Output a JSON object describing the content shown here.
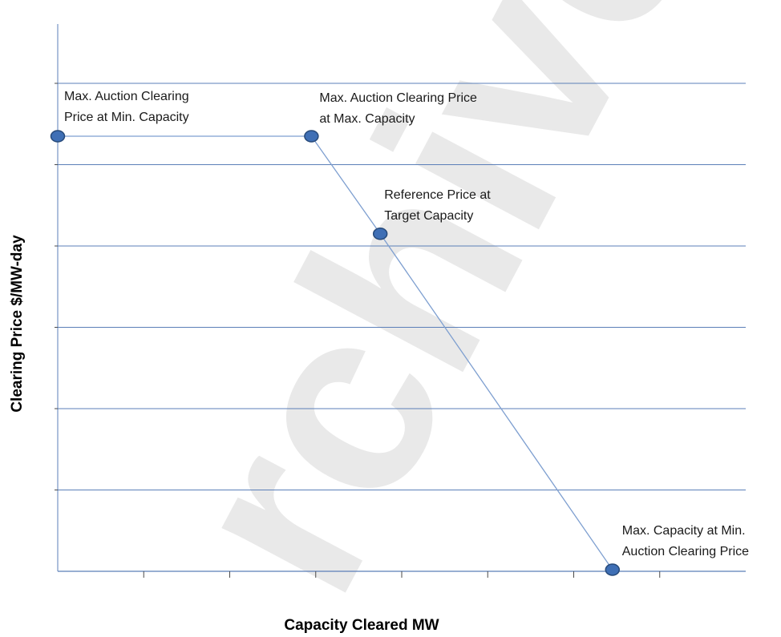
{
  "chart_data": {
    "type": "line",
    "title": "",
    "xlabel": "Capacity Cleared MW",
    "ylabel": "Clearing Price $/MW-day",
    "xlim": [
      0,
      8
    ],
    "ylim": [
      0,
      6
    ],
    "grid": true,
    "x_ticks_labeled": false,
    "y_ticks_labeled": false,
    "watermark": "rchive",
    "series": [
      {
        "values": [
          {
            "x": 0.0,
            "y": 5.35
          },
          {
            "x": 2.95,
            "y": 5.35
          },
          {
            "x": 3.75,
            "y": 4.15
          },
          {
            "x": 6.45,
            "y": 0.02
          }
        ]
      }
    ],
    "annotations": [
      {
        "point": 0,
        "lines": [
          "Max. Auction Clearing",
          "Price at Min. Capacity"
        ]
      },
      {
        "point": 1,
        "lines": [
          "Max. Auction Clearing  Price",
          "at Max. Capacity"
        ]
      },
      {
        "point": 2,
        "lines": [
          "Reference  Price at",
          "Target Capacity"
        ]
      },
      {
        "point": 3,
        "lines": [
          "Max. Capacity at Min.",
          "Auction Clearing Price"
        ]
      }
    ],
    "colors": {
      "gridline": "#5b7fb8",
      "series_line": "#7e9fd0",
      "marker_fill": "#3f6fb5",
      "marker_stroke": "#274a7a"
    }
  }
}
